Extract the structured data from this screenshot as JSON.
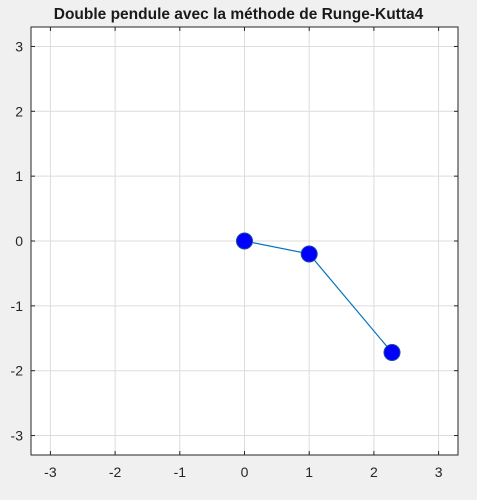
{
  "chart_data": {
    "type": "line",
    "title": "Double pendule avec la méthode de Runge-Kutta4",
    "xlabel": "",
    "ylabel": "",
    "xlim": [
      -3.3,
      3.3
    ],
    "ylim": [
      -3.3,
      3.3
    ],
    "xticks": [
      -3,
      -2,
      -1,
      0,
      1,
      2,
      3
    ],
    "yticks": [
      -3,
      -2,
      -1,
      0,
      1,
      2,
      3
    ],
    "xtick_labels": [
      "-3",
      "-2",
      "-1",
      "0",
      "1",
      "2",
      "3"
    ],
    "ytick_labels": [
      "-3",
      "-2",
      "-1",
      "0",
      "1",
      "2",
      "3"
    ],
    "grid": true,
    "series": [
      {
        "x": [
          0,
          1.0,
          2.28
        ],
        "y": [
          0,
          -0.2,
          -1.72
        ],
        "line_color": "#0072bd",
        "marker_color": "#0000ff"
      }
    ]
  }
}
